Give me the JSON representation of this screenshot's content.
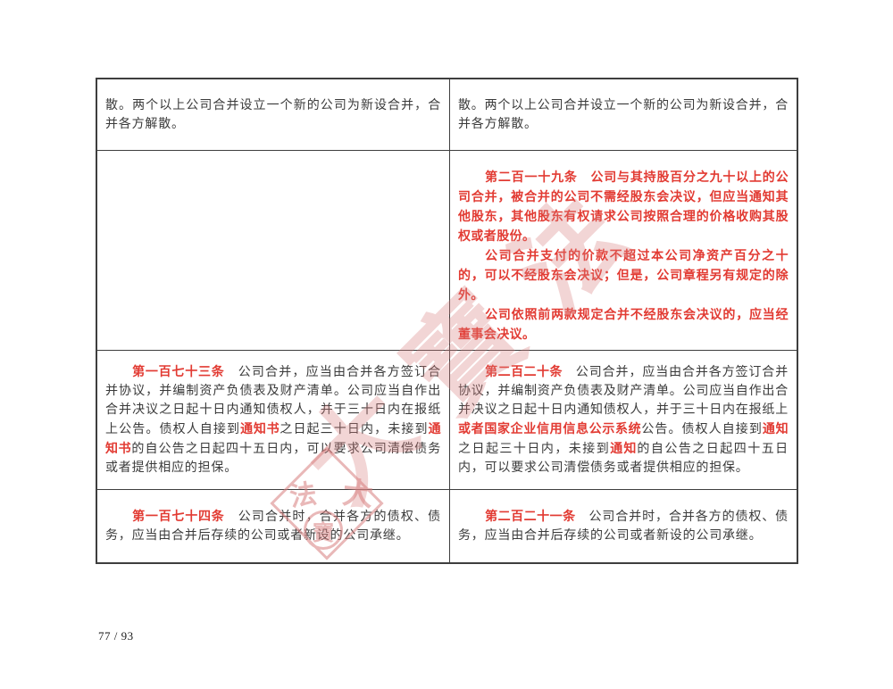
{
  "page": {
    "footer": "77 / 93"
  },
  "colors": {
    "highlight_red": "#e23b33",
    "body_text": "#3a3a3a",
    "table_border": "#3e3e3e",
    "watermark_pink": "#d98080"
  },
  "watermark": {
    "seal": {
      "top_left_char": "法",
      "top_right_char": "大",
      "bottom_char": "寶"
    },
    "calligraphy": [
      "法",
      "大",
      "寶"
    ]
  },
  "table": {
    "rows": [
      {
        "left": {
          "paragraphs": [
            {
              "indent": false,
              "segments": [
                {
                  "text": "散。两个以上公司合并设立一个新的公司为新设合并，合并各方解散。",
                  "red": false
                }
              ]
            }
          ]
        },
        "right": {
          "paragraphs": [
            {
              "indent": false,
              "segments": [
                {
                  "text": "散。两个以上公司合并设立一个新的公司为新设合并，合并各方解散。",
                  "red": false
                }
              ]
            }
          ]
        }
      },
      {
        "left": {
          "paragraphs": []
        },
        "right": {
          "paragraphs": [
            {
              "indent": true,
              "segments": [
                {
                  "text": "第二百一十九条",
                  "red": true
                },
                {
                  "text": "　公司与其持股百分之九十以上的公司合并，被合并的公司不需经股东会决议，但应当通知其他股东，其他股东有权请求公司按照合理的价格收购其股权或者股份。",
                  "red": true
                }
              ]
            },
            {
              "indent": true,
              "segments": [
                {
                  "text": "公司合并支付的价款不超过本公司净资产百分之十的，可以不经股东会决议；但是，公司章程另有规定的除外。",
                  "red": true
                }
              ]
            },
            {
              "indent": true,
              "segments": [
                {
                  "text": "公司依照前两款规定合并不经股东会决议的，应当经董事会决议。",
                  "red": true
                }
              ]
            }
          ]
        }
      },
      {
        "left": {
          "paragraphs": [
            {
              "indent": true,
              "segments": [
                {
                  "text": "第一百七十三条",
                  "red": true
                },
                {
                  "text": "　公司合并，应当由合并各方签订合并协议，并编制资产负债表及财产清单。公司应当自作出合并决议之日起十日内通知债权人，并于三十日内在报纸上公告。债权人自接到",
                  "red": false
                },
                {
                  "text": "通知书",
                  "red": true
                },
                {
                  "text": "之日起三十日内，未接到",
                  "red": false
                },
                {
                  "text": "通知书",
                  "red": true
                },
                {
                  "text": "的自公告之日起四十五日内，可以要求公司清偿债务或者提供相应的担保。",
                  "red": false
                }
              ]
            }
          ]
        },
        "right": {
          "paragraphs": [
            {
              "indent": true,
              "segments": [
                {
                  "text": "第二百二十条",
                  "red": true
                },
                {
                  "text": "　公司合并，应当由合并各方签订合并协议，并编制资产负债表及财产清单。公司应当自作出合并决议之日起十日内通知债权人，并于三十日内在报纸上",
                  "red": false
                },
                {
                  "text": "或者国家企业信用信息公示系统",
                  "red": true
                },
                {
                  "text": "公告。债权人自接到",
                  "red": false
                },
                {
                  "text": "通知",
                  "red": true
                },
                {
                  "text": "之日起三十日内，未接到",
                  "red": false
                },
                {
                  "text": "通知",
                  "red": true
                },
                {
                  "text": "的自公告之日起四十五日内，可以要求公司清偿债务或者提供相应的担保。",
                  "red": false
                }
              ]
            }
          ]
        }
      },
      {
        "left": {
          "paragraphs": [
            {
              "indent": true,
              "segments": [
                {
                  "text": "第一百七十四条",
                  "red": true
                },
                {
                  "text": "　公司合并时，合并各方的债权、债务，应当由合并后存续的公司或者新设的公司承继。",
                  "red": false
                }
              ]
            }
          ]
        },
        "right": {
          "paragraphs": [
            {
              "indent": true,
              "segments": [
                {
                  "text": "第二百二十一条",
                  "red": true
                },
                {
                  "text": "　公司合并时，合并各方的债权、债务，应当由合并后存续的公司或者新设的公司承继。",
                  "red": false
                }
              ]
            }
          ]
        }
      }
    ]
  }
}
